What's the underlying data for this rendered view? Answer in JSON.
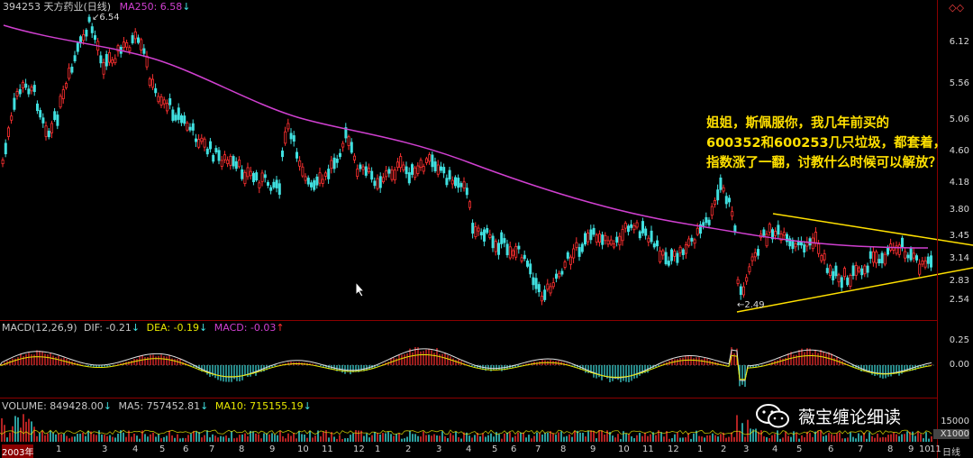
{
  "main_header": {
    "code_name": "394253 天方药业(日线)",
    "ma_label": "MA250: 6.58",
    "arrow": "↓"
  },
  "macd_header": {
    "params": "MACD(12,26,9)",
    "dif": "DIF: -0.21",
    "dea": "DEA: -0.19",
    "macd": "MACD: -0.03",
    "down": "↓",
    "up": "↑"
  },
  "vol_header": {
    "volume": "VOLUME: 849428.00",
    "ma5": "MA5: 757452.81",
    "ma10": "MA10: 715155.19",
    "down": "↓"
  },
  "price_axis": [
    "6.12",
    "5.56",
    "5.06",
    "4.60",
    "4.18",
    "3.80",
    "3.45",
    "3.14",
    "2.83",
    "2.54"
  ],
  "macd_axis": [
    "0.25",
    "0.00"
  ],
  "vol_axis": [
    "15000",
    "X1000"
  ],
  "x_axis": {
    "labels": [
      "2003年",
      "1",
      "3",
      "4",
      "5",
      "6",
      "7",
      "8",
      "9",
      "10",
      "11",
      "12",
      "1",
      "2",
      "3",
      "4",
      "5",
      "6",
      "7",
      "8",
      "9",
      "10",
      "11",
      "12",
      "1",
      "2",
      "3",
      "4",
      "5",
      "6",
      "7",
      "8",
      "9",
      "10",
      "11"
    ],
    "period": "日线"
  },
  "markers": {
    "high": "6.54",
    "low": "2.49"
  },
  "annotation": [
    "姐姐，斯佩服你，我几年前买的",
    "600352和600253几只垃圾，都套着，",
    "指数涨了一翻，讨教什么时候可以解放？"
  ],
  "watermark": "薇宝缠论细读",
  "corner_icon": "diamond-icon",
  "colors": {
    "up": "#ff3030",
    "down": "#40e0e0",
    "ma250": "#d040d0",
    "dea": "#e8e800",
    "trendline": "#ffe000",
    "divider": "#8b0000"
  }
}
